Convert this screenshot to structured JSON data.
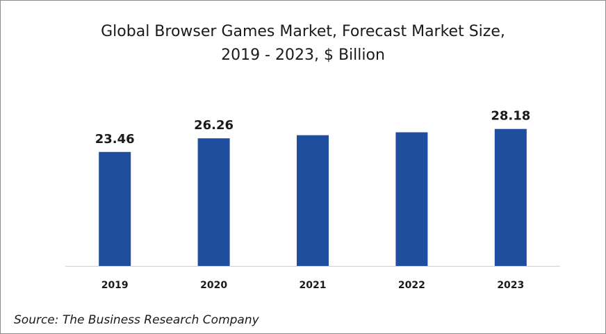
{
  "chart_data": {
    "type": "bar",
    "title_line1": "Global Browser Games Market, Forecast Market Size,",
    "title_line2": "2019 - 2023, $ Billion",
    "categories": [
      "2019",
      "2020",
      "2021",
      "2022",
      "2023"
    ],
    "values": [
      23.46,
      26.26,
      26.9,
      27.5,
      28.18
    ],
    "data_labels": [
      "23.46",
      "26.26",
      "",
      "",
      "28.18"
    ],
    "xlabel": "",
    "ylabel": "",
    "ylim": [
      0,
      33
    ],
    "grid": false,
    "legend": "none",
    "bar_color": "#1f4e9e"
  },
  "footer": {
    "source": "Source: The Business Research Company"
  }
}
